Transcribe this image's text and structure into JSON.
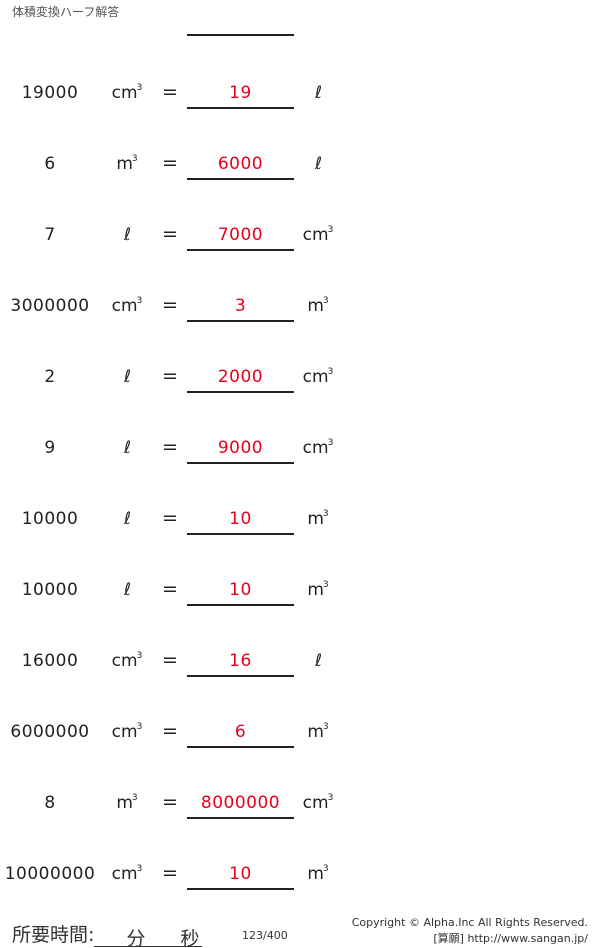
{
  "title": "体積変換ハーフ解答",
  "problems": [
    {
      "value": "19000",
      "from": "cm",
      "from_sup": "3",
      "answer": "19",
      "to": "ℓ",
      "to_sup": ""
    },
    {
      "value": "6",
      "from": "m",
      "from_sup": "3",
      "answer": "6000",
      "to": "ℓ",
      "to_sup": ""
    },
    {
      "value": "7",
      "from": "ℓ",
      "from_sup": "",
      "answer": "7000",
      "to": "cm",
      "to_sup": "3"
    },
    {
      "value": "3000000",
      "from": "cm",
      "from_sup": "3",
      "answer": "3",
      "to": "m",
      "to_sup": "3"
    },
    {
      "value": "2",
      "from": "ℓ",
      "from_sup": "",
      "answer": "2000",
      "to": "cm",
      "to_sup": "3"
    },
    {
      "value": "9",
      "from": "ℓ",
      "from_sup": "",
      "answer": "9000",
      "to": "cm",
      "to_sup": "3"
    },
    {
      "value": "10000",
      "from": "ℓ",
      "from_sup": "",
      "answer": "10",
      "to": "m",
      "to_sup": "3"
    },
    {
      "value": "10000",
      "from": "ℓ",
      "from_sup": "",
      "answer": "10",
      "to": "m",
      "to_sup": "3"
    },
    {
      "value": "16000",
      "from": "cm",
      "from_sup": "3",
      "answer": "16",
      "to": "ℓ",
      "to_sup": ""
    },
    {
      "value": "6000000",
      "from": "cm",
      "from_sup": "3",
      "answer": "6",
      "to": "m",
      "to_sup": "3"
    },
    {
      "value": "8",
      "from": "m",
      "from_sup": "3",
      "answer": "8000000",
      "to": "cm",
      "to_sup": "3"
    },
    {
      "value": "10000000",
      "from": "cm",
      "from_sup": "3",
      "answer": "10",
      "to": "m",
      "to_sup": "3"
    }
  ],
  "equals": "=",
  "footer": {
    "time_label": "所要時間:",
    "minutes": "分",
    "seconds": "秒",
    "page": "123/400",
    "copyright": "Copyright © Alpha.Inc All Rights Reserved.",
    "site": "[算願] http://www.sangan.jp/"
  },
  "colors": {
    "answer": "#e8001c"
  }
}
